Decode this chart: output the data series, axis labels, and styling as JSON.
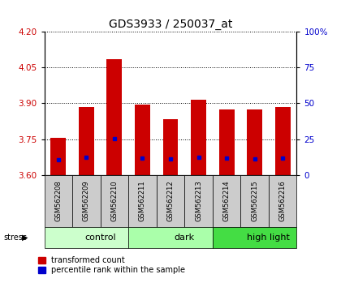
{
  "title": "GDS3933 / 250037_at",
  "samples": [
    "GSM562208",
    "GSM562209",
    "GSM562210",
    "GSM562211",
    "GSM562212",
    "GSM562213",
    "GSM562214",
    "GSM562215",
    "GSM562216"
  ],
  "bar_values": [
    3.755,
    3.885,
    4.085,
    3.895,
    3.835,
    3.915,
    3.875,
    3.875,
    3.885
  ],
  "blue_dot_values": [
    3.665,
    3.675,
    3.752,
    3.67,
    3.668,
    3.673,
    3.67,
    3.668,
    3.67
  ],
  "ylim": [
    3.6,
    4.2
  ],
  "yticks_left": [
    3.6,
    3.75,
    3.9,
    4.05,
    4.2
  ],
  "yticks_right": [
    0,
    25,
    50,
    75,
    100
  ],
  "right_ylim": [
    0,
    100
  ],
  "groups": [
    {
      "label": "control",
      "start": 0,
      "end": 3,
      "color": "#ccffcc"
    },
    {
      "label": "dark",
      "start": 3,
      "end": 6,
      "color": "#aaffaa"
    },
    {
      "label": "high light",
      "start": 6,
      "end": 9,
      "color": "#44dd44"
    }
  ],
  "bar_color": "#cc0000",
  "dot_color": "#0000cc",
  "bar_width": 0.55,
  "tick_label_color_left": "#cc0000",
  "tick_label_color_right": "#0000cc",
  "grid_color": "black",
  "label_bg_color": "#cccccc",
  "fig_width": 4.2,
  "fig_height": 3.54,
  "dpi": 100
}
